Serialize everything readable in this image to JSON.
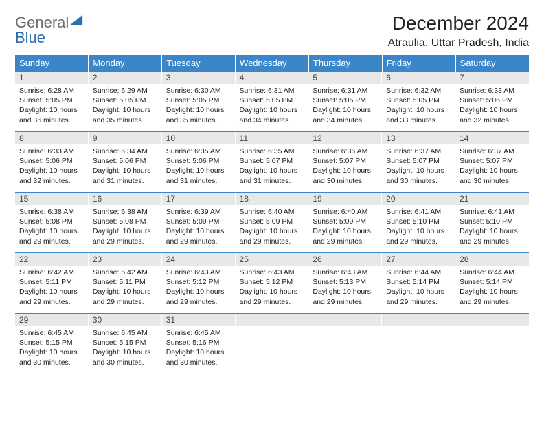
{
  "logo": {
    "textGray": "General",
    "textBlue": "Blue"
  },
  "header": {
    "title": "December 2024",
    "location": "Atraulia, Uttar Pradesh, India"
  },
  "style": {
    "header_bg": "#3b86c8",
    "daynum_bg": "#e8e8e8",
    "row_border": "#3b86c8",
    "title_fontsize": 28,
    "location_fontsize": 16,
    "daynum_fontsize": 12,
    "cell_fontsize": 10.5
  },
  "dayNames": [
    "Sunday",
    "Monday",
    "Tuesday",
    "Wednesday",
    "Thursday",
    "Friday",
    "Saturday"
  ],
  "weeks": [
    [
      {
        "n": "1",
        "sr": "6:28 AM",
        "ss": "5:05 PM",
        "dl": "10 hours and 36 minutes."
      },
      {
        "n": "2",
        "sr": "6:29 AM",
        "ss": "5:05 PM",
        "dl": "10 hours and 35 minutes."
      },
      {
        "n": "3",
        "sr": "6:30 AM",
        "ss": "5:05 PM",
        "dl": "10 hours and 35 minutes."
      },
      {
        "n": "4",
        "sr": "6:31 AM",
        "ss": "5:05 PM",
        "dl": "10 hours and 34 minutes."
      },
      {
        "n": "5",
        "sr": "6:31 AM",
        "ss": "5:05 PM",
        "dl": "10 hours and 34 minutes."
      },
      {
        "n": "6",
        "sr": "6:32 AM",
        "ss": "5:05 PM",
        "dl": "10 hours and 33 minutes."
      },
      {
        "n": "7",
        "sr": "6:33 AM",
        "ss": "5:06 PM",
        "dl": "10 hours and 32 minutes."
      }
    ],
    [
      {
        "n": "8",
        "sr": "6:33 AM",
        "ss": "5:06 PM",
        "dl": "10 hours and 32 minutes."
      },
      {
        "n": "9",
        "sr": "6:34 AM",
        "ss": "5:06 PM",
        "dl": "10 hours and 31 minutes."
      },
      {
        "n": "10",
        "sr": "6:35 AM",
        "ss": "5:06 PM",
        "dl": "10 hours and 31 minutes."
      },
      {
        "n": "11",
        "sr": "6:35 AM",
        "ss": "5:07 PM",
        "dl": "10 hours and 31 minutes."
      },
      {
        "n": "12",
        "sr": "6:36 AM",
        "ss": "5:07 PM",
        "dl": "10 hours and 30 minutes."
      },
      {
        "n": "13",
        "sr": "6:37 AM",
        "ss": "5:07 PM",
        "dl": "10 hours and 30 minutes."
      },
      {
        "n": "14",
        "sr": "6:37 AM",
        "ss": "5:07 PM",
        "dl": "10 hours and 30 minutes."
      }
    ],
    [
      {
        "n": "15",
        "sr": "6:38 AM",
        "ss": "5:08 PM",
        "dl": "10 hours and 29 minutes."
      },
      {
        "n": "16",
        "sr": "6:38 AM",
        "ss": "5:08 PM",
        "dl": "10 hours and 29 minutes."
      },
      {
        "n": "17",
        "sr": "6:39 AM",
        "ss": "5:09 PM",
        "dl": "10 hours and 29 minutes."
      },
      {
        "n": "18",
        "sr": "6:40 AM",
        "ss": "5:09 PM",
        "dl": "10 hours and 29 minutes."
      },
      {
        "n": "19",
        "sr": "6:40 AM",
        "ss": "5:09 PM",
        "dl": "10 hours and 29 minutes."
      },
      {
        "n": "20",
        "sr": "6:41 AM",
        "ss": "5:10 PM",
        "dl": "10 hours and 29 minutes."
      },
      {
        "n": "21",
        "sr": "6:41 AM",
        "ss": "5:10 PM",
        "dl": "10 hours and 29 minutes."
      }
    ],
    [
      {
        "n": "22",
        "sr": "6:42 AM",
        "ss": "5:11 PM",
        "dl": "10 hours and 29 minutes."
      },
      {
        "n": "23",
        "sr": "6:42 AM",
        "ss": "5:11 PM",
        "dl": "10 hours and 29 minutes."
      },
      {
        "n": "24",
        "sr": "6:43 AM",
        "ss": "5:12 PM",
        "dl": "10 hours and 29 minutes."
      },
      {
        "n": "25",
        "sr": "6:43 AM",
        "ss": "5:12 PM",
        "dl": "10 hours and 29 minutes."
      },
      {
        "n": "26",
        "sr": "6:43 AM",
        "ss": "5:13 PM",
        "dl": "10 hours and 29 minutes."
      },
      {
        "n": "27",
        "sr": "6:44 AM",
        "ss": "5:14 PM",
        "dl": "10 hours and 29 minutes."
      },
      {
        "n": "28",
        "sr": "6:44 AM",
        "ss": "5:14 PM",
        "dl": "10 hours and 29 minutes."
      }
    ],
    [
      {
        "n": "29",
        "sr": "6:45 AM",
        "ss": "5:15 PM",
        "dl": "10 hours and 30 minutes."
      },
      {
        "n": "30",
        "sr": "6:45 AM",
        "ss": "5:15 PM",
        "dl": "10 hours and 30 minutes."
      },
      {
        "n": "31",
        "sr": "6:45 AM",
        "ss": "5:16 PM",
        "dl": "10 hours and 30 minutes."
      },
      null,
      null,
      null,
      null
    ]
  ],
  "labels": {
    "sunrise": "Sunrise:",
    "sunset": "Sunset:",
    "daylight": "Daylight:"
  }
}
